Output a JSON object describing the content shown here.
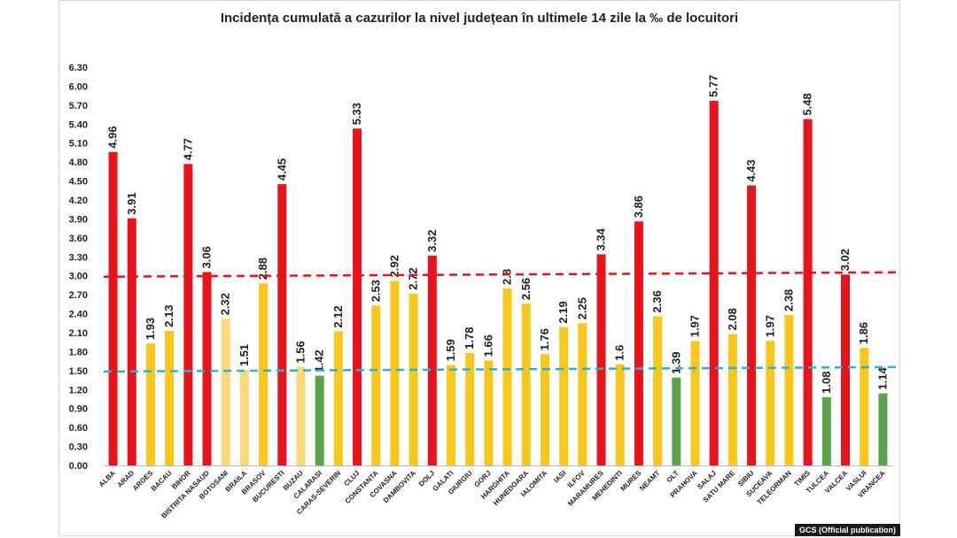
{
  "chart_data": {
    "type": "bar",
    "title": "Incidența cumulată a cazurilor la nivel județean în ultimele 14 zile la ‰ de locuitori",
    "xlabel": "",
    "ylabel": "",
    "ylim": [
      0,
      6.3
    ],
    "yticks": [
      "0.00",
      "0.30",
      "0.60",
      "0.90",
      "1.20",
      "1.50",
      "1.80",
      "2.10",
      "2.40",
      "2.70",
      "3.00",
      "3.30",
      "3.60",
      "3.90",
      "4.20",
      "4.50",
      "4.80",
      "5.10",
      "5.40",
      "5.70",
      "6.00",
      "6.30"
    ],
    "categories": [
      "ALBA",
      "ARAD",
      "ARGES",
      "BACAU",
      "BIHOR",
      "BISTRITA NASAUD",
      "BOTOSANI",
      "BRAILA",
      "BRASOV",
      "BUCURESTI",
      "BUZAU",
      "CALARASI",
      "CARAS-SEVERIN",
      "CLUJ",
      "CONSTANTA",
      "COVASNA",
      "DAMBOVITA",
      "DOLJ",
      "GALATI",
      "GIURGIU",
      "GORJ",
      "HARGHITA",
      "HUNEDOARA",
      "IALOMITA",
      "IASI",
      "ILFOV",
      "MARAMURES",
      "MEHEDINTI",
      "MURES",
      "NEAMT",
      "OLT",
      "PRAHOVA",
      "SALAJ",
      "SATU MARE",
      "SIBIU",
      "SUCEAVA",
      "TELEORMAN",
      "TIMIS",
      "TULCEA",
      "VALCEA",
      "VASLUI",
      "VRANCEA"
    ],
    "values": [
      4.96,
      3.91,
      1.93,
      2.13,
      4.77,
      3.06,
      2.32,
      1.51,
      2.88,
      4.45,
      1.56,
      1.42,
      2.12,
      5.33,
      2.53,
      2.92,
      2.72,
      3.32,
      1.59,
      1.78,
      1.66,
      2.8,
      2.56,
      1.76,
      2.19,
      2.25,
      3.34,
      1.6,
      3.86,
      2.36,
      1.39,
      1.97,
      5.77,
      2.08,
      4.43,
      1.97,
      2.38,
      5.48,
      1.08,
      3.02,
      1.86,
      1.14
    ],
    "labels": [
      "4.96",
      "3.91",
      "1.93",
      "2.13",
      "4.77",
      "3.06",
      "2.32",
      "1.51",
      "2.88",
      "4.45",
      "1.56",
      "1.42",
      "2.12",
      "5.33",
      "2.53",
      "2.92",
      "2.72",
      "3.32",
      "1.59",
      "1.78",
      "1.66",
      "2.8",
      "2.56",
      "1.76",
      "2.19",
      "2.25",
      "3.34",
      "1.6",
      "3.86",
      "2.36",
      "1.39",
      "1.97",
      "5.77",
      "2.08",
      "4.43",
      "1.97",
      "2.38",
      "5.48",
      "1.08",
      "3.02",
      "1.86",
      "1.14"
    ],
    "bar_colors": [
      "#e8131b",
      "#e8131b",
      "#f7c71b",
      "#f7c71b",
      "#e8131b",
      "#e8131b",
      "#fbd97a",
      "#fbd97a",
      "#f7c71b",
      "#e8131b",
      "#fbd97a",
      "#5aa34a",
      "#f7c71b",
      "#e8131b",
      "#f7c71b",
      "#f7c71b",
      "#f7c71b",
      "#e8131b",
      "#f7c71b",
      "#f7c71b",
      "#f7c71b",
      "#f7c71b",
      "#f7c71b",
      "#f7c71b",
      "#f7c71b",
      "#f7c71b",
      "#e8131b",
      "#f7c71b",
      "#e8131b",
      "#f7c71b",
      "#5aa34a",
      "#f7c71b",
      "#e8131b",
      "#f7c71b",
      "#e8131b",
      "#f7c71b",
      "#f7c71b",
      "#e8131b",
      "#5aa34a",
      "#e8131b",
      "#f7c71b",
      "#5aa34a"
    ],
    "thresholds": [
      {
        "name": "red-threshold",
        "value": 3.0,
        "color": "#e8131b"
      },
      {
        "name": "blue-threshold",
        "value": 1.5,
        "color": "#2ab0d8"
      }
    ],
    "grid": false,
    "legend": "none"
  },
  "credit": "GCS (Official publication)"
}
